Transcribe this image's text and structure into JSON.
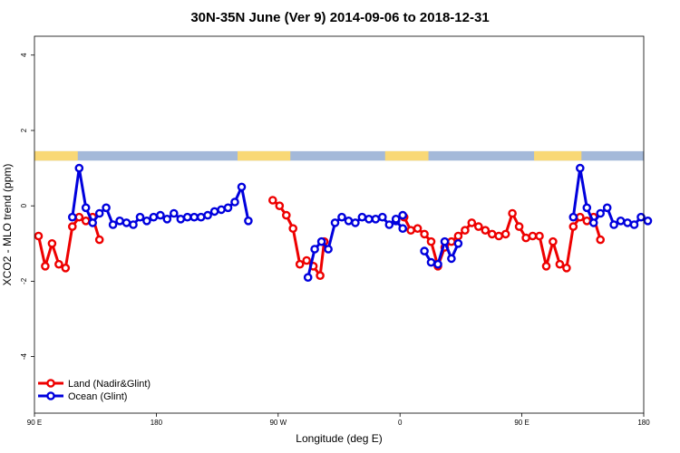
{
  "colors": {
    "land": "#ee0000",
    "ocean": "#0000dd",
    "band_land": "#f9d876",
    "band_ocean": "#a4b9d9",
    "frame": "#000000"
  },
  "chart_data": {
    "type": "line",
    "title": "30N-35N June (Ver 9)   2014-09-06 to 2018-12-31",
    "xlabel": "Longitude (deg E)",
    "ylabel": "XCO2 - MLO trend (ppm)",
    "xlim": [
      90,
      540
    ],
    "ylim": [
      -5.5,
      4.5
    ],
    "x_ticks": [
      {
        "value": 90,
        "label": "90 E"
      },
      {
        "value": 180,
        "label": "180"
      },
      {
        "value": 270,
        "label": "90 W"
      },
      {
        "value": 360,
        "label": "0"
      },
      {
        "value": 450,
        "label": "90 E"
      },
      {
        "value": 540,
        "label": "180"
      }
    ],
    "y_ticks": [
      {
        "value": -4,
        "label": "-4"
      },
      {
        "value": -2,
        "label": "-2"
      },
      {
        "value": 0,
        "label": "0"
      },
      {
        "value": 2,
        "label": "2"
      },
      {
        "value": 4,
        "label": "4"
      }
    ],
    "legend_position": "bottom-left",
    "surface_band": {
      "y_range": [
        1.2,
        1.45
      ],
      "land_segments": [
        [
          90,
          122
        ],
        [
          240,
          279
        ],
        [
          349,
          381
        ],
        [
          459,
          494
        ]
      ]
    },
    "series": [
      {
        "name": "Land (Nadir&Glint)",
        "color": "#ee0000",
        "segments": [
          {
            "x": [
              93,
              98,
              103,
              108,
              113,
              118,
              123,
              128,
              133,
              138
            ],
            "y": [
              -0.8,
              -1.6,
              -1.0,
              -1.55,
              -1.65,
              -0.55,
              -0.3,
              -0.4,
              -0.3,
              -0.9
            ]
          },
          {
            "x": [
              266,
              271,
              276,
              281,
              286,
              291,
              296,
              301,
              304
            ],
            "y": [
              0.15,
              0.0,
              -0.25,
              -0.6,
              -1.55,
              -1.45,
              -1.6,
              -1.85,
              -0.95
            ]
          },
          {
            "x": [
              363,
              368,
              373,
              378,
              383,
              388,
              393,
              398,
              403,
              408,
              413,
              418,
              423,
              428,
              433,
              438,
              443,
              448,
              453,
              458,
              463,
              468,
              473,
              478,
              483,
              488,
              493,
              498
            ],
            "y": [
              -0.3,
              -0.65,
              -0.6,
              -0.75,
              -0.95,
              -1.6,
              -1.1,
              -0.95,
              -0.8,
              -0.65,
              -0.45,
              -0.55,
              -0.65,
              -0.75,
              -0.8,
              -0.75,
              -0.2,
              -0.55,
              -0.85,
              -0.8,
              -0.8,
              -1.6,
              -0.95,
              -1.55,
              -1.65,
              -0.55,
              -0.3,
              -0.4
            ]
          },
          {
            "x": [
              503,
              508
            ],
            "y": [
              -0.3,
              -0.9
            ]
          }
        ]
      },
      {
        "name": "Ocean (Glint)",
        "color": "#0000dd",
        "segments": [
          {
            "x": [
              118,
              123,
              128,
              133,
              138,
              143,
              148,
              153,
              158,
              163,
              168,
              173,
              178,
              183,
              188,
              193,
              198,
              203,
              208,
              213,
              218,
              223,
              228,
              233,
              238,
              243,
              248,
              253,
              258
            ],
            "y": [
              -0.3,
              1.0,
              -0.05,
              -0.45,
              -0.2,
              -0.05,
              -0.5,
              -0.4,
              -0.45,
              -0.5,
              -0.3,
              -0.4,
              -0.3,
              -0.25,
              -0.35,
              -0.2,
              -0.35,
              -0.3,
              -0.3,
              -0.3,
              -0.25,
              -0.15,
              -0.1,
              -0.05,
              0.1,
              0.5,
              -0.4,
              null,
              null
            ]
          },
          {
            "x": [
              292,
              297,
              302,
              307,
              312,
              317,
              322,
              327,
              332,
              337,
              342,
              347,
              352,
              357,
              362
            ],
            "y": [
              -1.9,
              -1.15,
              -0.95,
              -1.15,
              -0.45,
              -0.3,
              -0.4,
              -0.45,
              -0.3,
              -0.35,
              -0.35,
              -0.3,
              -0.5,
              -0.4,
              -0.6
            ]
          },
          {
            "x": [
              357,
              362
            ],
            "y": [
              -0.35,
              -0.25
            ]
          },
          {
            "x": [
              378,
              383,
              388,
              393,
              398,
              403
            ],
            "y": [
              -1.2,
              -1.5,
              -1.55,
              -0.95,
              -1.4,
              -1.0
            ]
          },
          {
            "x": [
              488,
              493,
              498,
              503,
              508,
              513,
              518,
              523,
              528,
              533,
              538,
              543
            ],
            "y": [
              -0.3,
              1.0,
              -0.05,
              -0.45,
              -0.2,
              -0.05,
              -0.5,
              -0.4,
              -0.45,
              -0.5,
              -0.3,
              -0.4
            ]
          }
        ]
      }
    ]
  }
}
